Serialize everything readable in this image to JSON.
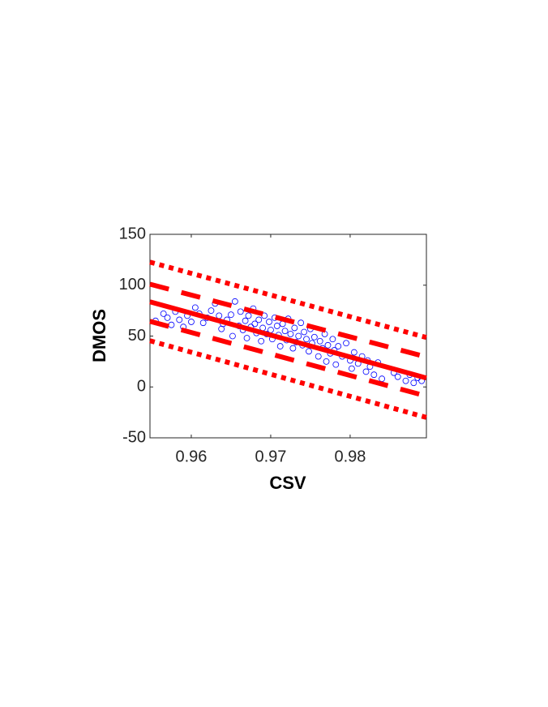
{
  "chart_data": {
    "type": "scatter",
    "xlabel": "CSV",
    "ylabel": "DMOS",
    "xlim": [
      0.9548,
      0.9896
    ],
    "ylim": [
      -50,
      150
    ],
    "xticks": [
      0.96,
      0.97,
      0.98
    ],
    "yticks": [
      -50,
      0,
      50,
      100,
      150
    ],
    "series": [
      {
        "type": "scatter",
        "color": "#0000ff",
        "x": [
          0.9555,
          0.9565,
          0.957,
          0.9575,
          0.958,
          0.9585,
          0.959,
          0.9595,
          0.96,
          0.9605,
          0.961,
          0.9615,
          0.962,
          0.9625,
          0.963,
          0.9635,
          0.9638,
          0.964,
          0.9645,
          0.965,
          0.9652,
          0.9655,
          0.966,
          0.9662,
          0.9665,
          0.9668,
          0.967,
          0.9672,
          0.9675,
          0.9678,
          0.968,
          0.9682,
          0.9685,
          0.9688,
          0.969,
          0.9692,
          0.9695,
          0.9698,
          0.97,
          0.9702,
          0.9705,
          0.9708,
          0.971,
          0.9712,
          0.9715,
          0.9718,
          0.972,
          0.9722,
          0.9725,
          0.9728,
          0.973,
          0.9732,
          0.9735,
          0.9738,
          0.974,
          0.9742,
          0.9745,
          0.9748,
          0.975,
          0.9752,
          0.9755,
          0.976,
          0.9762,
          0.9765,
          0.9768,
          0.977,
          0.9772,
          0.9775,
          0.9778,
          0.978,
          0.9782,
          0.9785,
          0.979,
          0.9795,
          0.98,
          0.9802,
          0.9805,
          0.981,
          0.9815,
          0.982,
          0.9822,
          0.9825,
          0.983,
          0.9835,
          0.984,
          0.9855,
          0.986,
          0.987,
          0.9875,
          0.988,
          0.9885,
          0.989
        ],
        "values": [
          65,
          72,
          68,
          61,
          74,
          66,
          59,
          70,
          64,
          78,
          72,
          63,
          68,
          75,
          82,
          70,
          57,
          62,
          66,
          71,
          50,
          84,
          60,
          74,
          56,
          65,
          48,
          70,
          59,
          77,
          62,
          53,
          66,
          45,
          58,
          70,
          52,
          64,
          56,
          47,
          68,
          60,
          51,
          40,
          62,
          55,
          46,
          67,
          52,
          38,
          58,
          44,
          50,
          63,
          41,
          54,
          47,
          35,
          57,
          43,
          49,
          30,
          45,
          38,
          52,
          25,
          41,
          33,
          47,
          36,
          22,
          40,
          30,
          43,
          26,
          18,
          34,
          23,
          30,
          15,
          26,
          20,
          12,
          24,
          8,
          14,
          10,
          6,
          12,
          4,
          9,
          6
        ]
      },
      {
        "type": "line",
        "color": "#ff0000",
        "dash": "solid",
        "x": [
          0.9548,
          0.9896
        ],
        "values": [
          83.7,
          8.8
        ]
      },
      {
        "type": "line",
        "color": "#ff0000",
        "dash": "dashed",
        "x": [
          0.9548,
          0.9896
        ],
        "values": [
          101,
          29.5
        ]
      },
      {
        "type": "line",
        "color": "#ff0000",
        "dash": "dashed",
        "x": [
          0.9548,
          0.9896
        ],
        "values": [
          64.5,
          -9
        ]
      },
      {
        "type": "line",
        "color": "#ff0000",
        "dash": "dotted",
        "x": [
          0.9548,
          0.9896
        ],
        "values": [
          122.7,
          48.6
        ]
      },
      {
        "type": "line",
        "color": "#ff0000",
        "dash": "dotted",
        "x": [
          0.9548,
          0.9896
        ],
        "values": [
          45.4,
          -30
        ]
      }
    ]
  }
}
